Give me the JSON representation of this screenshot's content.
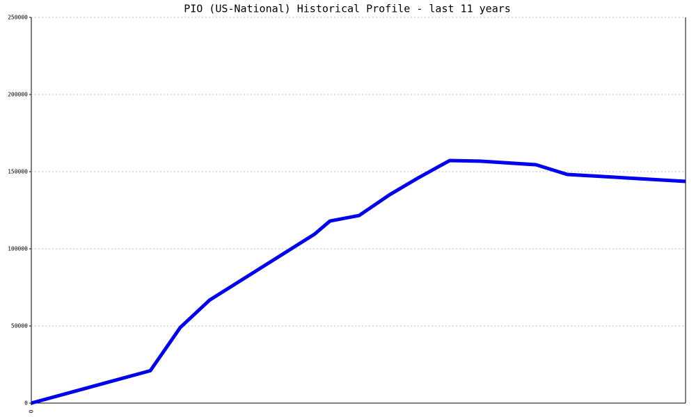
{
  "chart_data": {
    "type": "line",
    "title": "PIO (US-National) Historical Profile - last 11 years",
    "x": [
      0,
      171,
      214,
      256,
      407,
      429,
      471,
      515,
      556,
      601,
      645,
      725,
      770,
      940
    ],
    "series": [
      {
        "color": "#0000ee",
        "values": [
          0,
          21000,
          49000,
          66700,
          109500,
          118000,
          121600,
          135100,
          146000,
          157200,
          156800,
          154500,
          148200,
          143700
        ]
      }
    ],
    "xlim": [
      0,
      940
    ],
    "xticks": [
      0
    ],
    "ylim": [
      0,
      250000
    ],
    "yticks": [
      0,
      50000,
      100000,
      150000,
      200000,
      250000
    ],
    "grid": true
  }
}
